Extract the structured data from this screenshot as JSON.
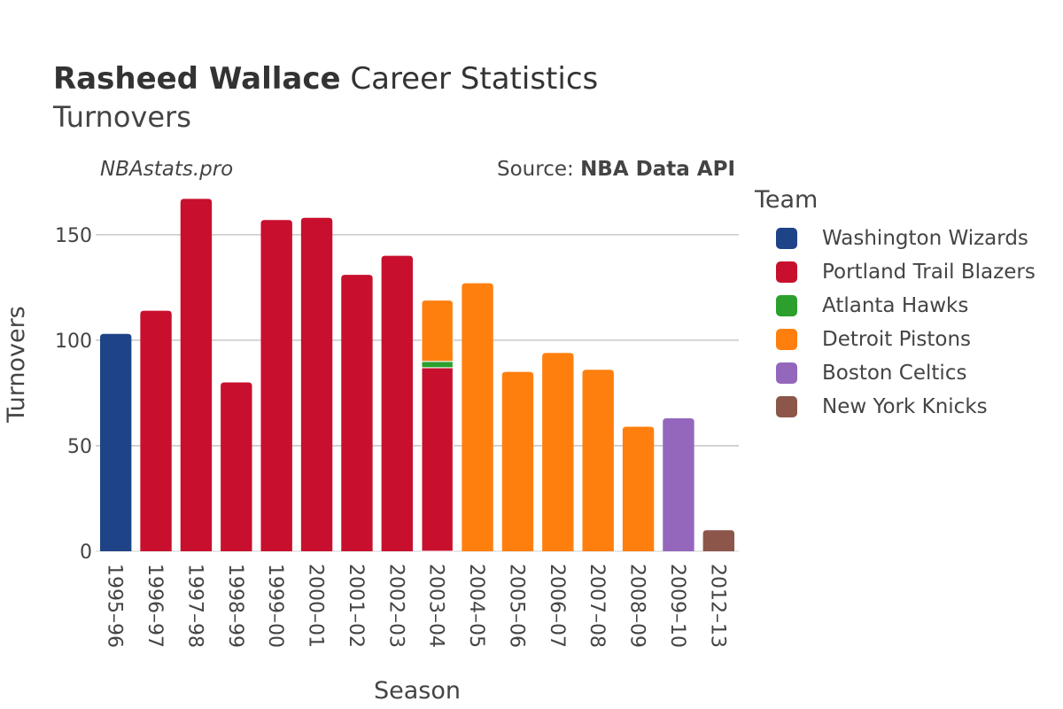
{
  "header": {
    "title_bold": "Rasheed Wallace",
    "title_rest": " Career Statistics",
    "subtitle": "Turnovers",
    "credit": "NBAstats.pro",
    "source_prefix": "Source: ",
    "source_name": "NBA Data API"
  },
  "legend": {
    "title": "Team",
    "items": [
      {
        "label": "Washington Wizards",
        "color": "#1f4387"
      },
      {
        "label": "Portland Trail Blazers",
        "color": "#c8102e"
      },
      {
        "label": "Atlanta Hawks",
        "color": "#2ca02c"
      },
      {
        "label": "Detroit Pistons",
        "color": "#ff7f0e"
      },
      {
        "label": "Boston Celtics",
        "color": "#9467bd"
      },
      {
        "label": "New York Knicks",
        "color": "#8c564b"
      }
    ]
  },
  "chart_data": {
    "type": "bar",
    "stacked": true,
    "xlabel": "Season",
    "ylabel": "Turnovers",
    "ylim": [
      0,
      168
    ],
    "yticks": [
      0,
      50,
      100,
      150
    ],
    "grid": true,
    "categories": [
      "1995–96",
      "1996–97",
      "1997–98",
      "1998–99",
      "1999–00",
      "2000–01",
      "2001–02",
      "2002–03",
      "2003–04",
      "2004–05",
      "2005–06",
      "2006–07",
      "2007–08",
      "2008–09",
      "2009–10",
      "2012–13"
    ],
    "series": [
      {
        "name": "Washington Wizards",
        "color": "#1f4387",
        "values": [
          103,
          0,
          0,
          0,
          0,
          0,
          0,
          0,
          0,
          0,
          0,
          0,
          0,
          0,
          0,
          0
        ]
      },
      {
        "name": "Portland Trail Blazers",
        "color": "#c8102e",
        "values": [
          0,
          114,
          167,
          80,
          157,
          158,
          131,
          140,
          87,
          0,
          0,
          0,
          0,
          0,
          0,
          0
        ]
      },
      {
        "name": "Atlanta Hawks",
        "color": "#2ca02c",
        "values": [
          0,
          0,
          0,
          0,
          0,
          0,
          0,
          0,
          3,
          0,
          0,
          0,
          0,
          0,
          0,
          0
        ]
      },
      {
        "name": "Detroit Pistons",
        "color": "#ff7f0e",
        "values": [
          0,
          0,
          0,
          0,
          0,
          0,
          0,
          0,
          29,
          127,
          85,
          94,
          86,
          59,
          0,
          0
        ]
      },
      {
        "name": "Boston Celtics",
        "color": "#9467bd",
        "values": [
          0,
          0,
          0,
          0,
          0,
          0,
          0,
          0,
          0,
          0,
          0,
          0,
          0,
          0,
          63,
          0
        ]
      },
      {
        "name": "New York Knicks",
        "color": "#8c564b",
        "values": [
          0,
          0,
          0,
          0,
          0,
          0,
          0,
          0,
          0,
          0,
          0,
          0,
          0,
          0,
          0,
          10
        ]
      }
    ]
  }
}
